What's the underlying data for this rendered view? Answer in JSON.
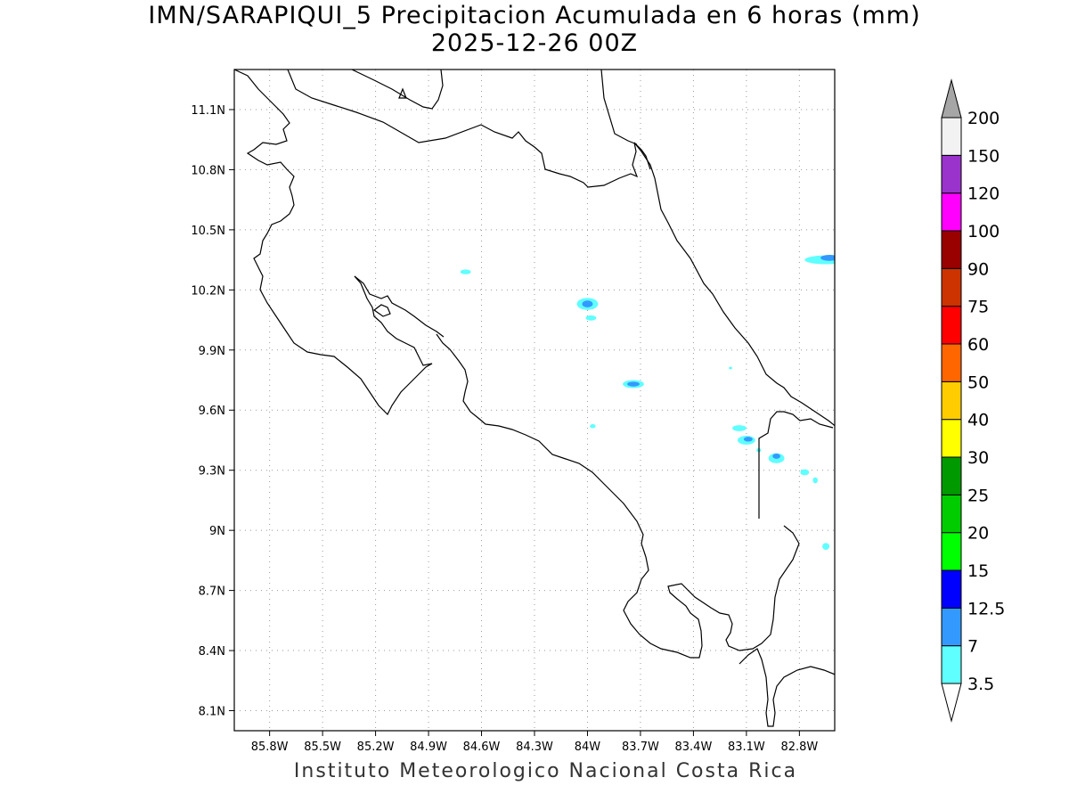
{
  "title": {
    "line1": "IMN/SARAPIQUI_5 Precipitacion Acumulada en 6 horas (mm)",
    "line2": "2025-12-26 00Z"
  },
  "credit": "Instituto Meteorologico Nacional Costa Rica",
  "map": {
    "lon_range": [
      -86.0,
      -82.6
    ],
    "lat_range": [
      8.0,
      11.3
    ],
    "lon_ticks": [
      {
        "lon": -85.8,
        "label": "85.8W"
      },
      {
        "lon": -85.5,
        "label": "85.5W"
      },
      {
        "lon": -85.2,
        "label": "85.2W"
      },
      {
        "lon": -84.9,
        "label": "84.9W"
      },
      {
        "lon": -84.6,
        "label": "84.6W"
      },
      {
        "lon": -84.3,
        "label": "84.3W"
      },
      {
        "lon": -84.0,
        "label": "84W"
      },
      {
        "lon": -83.7,
        "label": "83.7W"
      },
      {
        "lon": -83.4,
        "label": "83.4W"
      },
      {
        "lon": -83.1,
        "label": "83.1W"
      },
      {
        "lon": -82.8,
        "label": "82.8W"
      }
    ],
    "lat_ticks": [
      {
        "lat": 11.1,
        "label": "11.1N"
      },
      {
        "lat": 10.8,
        "label": "10.8N"
      },
      {
        "lat": 10.5,
        "label": "10.5N"
      },
      {
        "lat": 10.2,
        "label": "10.2N"
      },
      {
        "lat": 9.9,
        "label": "9.9N"
      },
      {
        "lat": 9.6,
        "label": "9.6N"
      },
      {
        "lat": 9.3,
        "label": "9.3N"
      },
      {
        "lat": 9.0,
        "label": "9N"
      },
      {
        "lat": 8.7,
        "label": "8.7N"
      },
      {
        "lat": 8.4,
        "label": "8.4N"
      },
      {
        "lat": 8.1,
        "label": "8.1N"
      }
    ],
    "grid": true,
    "precip_cells": [
      {
        "lon": -84.69,
        "lat": 10.29,
        "rx": 0.03,
        "ry": 0.012,
        "level": 1
      },
      {
        "lon": -84.0,
        "lat": 10.13,
        "rx": 0.06,
        "ry": 0.03,
        "level": 1
      },
      {
        "lon": -84.0,
        "lat": 10.13,
        "rx": 0.03,
        "ry": 0.017,
        "level": 2
      },
      {
        "lon": -83.98,
        "lat": 10.06,
        "rx": 0.03,
        "ry": 0.013,
        "level": 1
      },
      {
        "lon": -83.74,
        "lat": 9.73,
        "rx": 0.06,
        "ry": 0.02,
        "level": 1
      },
      {
        "lon": -83.74,
        "lat": 9.73,
        "rx": 0.035,
        "ry": 0.012,
        "level": 2
      },
      {
        "lon": -83.97,
        "lat": 9.52,
        "rx": 0.016,
        "ry": 0.01,
        "level": 1
      },
      {
        "lon": -83.14,
        "lat": 9.51,
        "rx": 0.04,
        "ry": 0.015,
        "level": 1
      },
      {
        "lon": -83.1,
        "lat": 9.45,
        "rx": 0.05,
        "ry": 0.022,
        "level": 1
      },
      {
        "lon": -83.09,
        "lat": 9.455,
        "rx": 0.025,
        "ry": 0.012,
        "level": 2
      },
      {
        "lon": -82.93,
        "lat": 9.36,
        "rx": 0.045,
        "ry": 0.025,
        "level": 1
      },
      {
        "lon": -82.93,
        "lat": 9.37,
        "rx": 0.022,
        "ry": 0.013,
        "level": 2
      },
      {
        "lon": -83.03,
        "lat": 9.4,
        "rx": 0.013,
        "ry": 0.01,
        "level": 1
      },
      {
        "lon": -82.77,
        "lat": 9.29,
        "rx": 0.025,
        "ry": 0.015,
        "level": 1
      },
      {
        "lon": -82.71,
        "lat": 9.25,
        "rx": 0.014,
        "ry": 0.015,
        "level": 1
      },
      {
        "lon": -82.65,
        "lat": 8.92,
        "rx": 0.02,
        "ry": 0.017,
        "level": 1
      },
      {
        "lon": -82.65,
        "lat": 10.35,
        "rx": 0.12,
        "ry": 0.022,
        "level": 1
      },
      {
        "lon": -82.63,
        "lat": 10.36,
        "rx": 0.05,
        "ry": 0.015,
        "level": 2
      },
      {
        "lon": -83.19,
        "lat": 9.81,
        "rx": 0.01,
        "ry": 0.006,
        "level": 1
      }
    ]
  },
  "colorbar": {
    "colors": [
      "#60ffff",
      "#3399ff",
      "#0000ff",
      "#00ff00",
      "#00cc00",
      "#009900",
      "#ffff00",
      "#ffcc00",
      "#ff6600",
      "#ff0000",
      "#cc3300",
      "#990000",
      "#ff00ff",
      "#9933cc",
      "#f2f2f2",
      "#a6a6a6"
    ],
    "labels": [
      "3.5",
      "7",
      "12.5",
      "15",
      "20",
      "25",
      "30",
      "40",
      "50",
      "60",
      "75",
      "90",
      "100",
      "120",
      "150",
      "200"
    ]
  }
}
